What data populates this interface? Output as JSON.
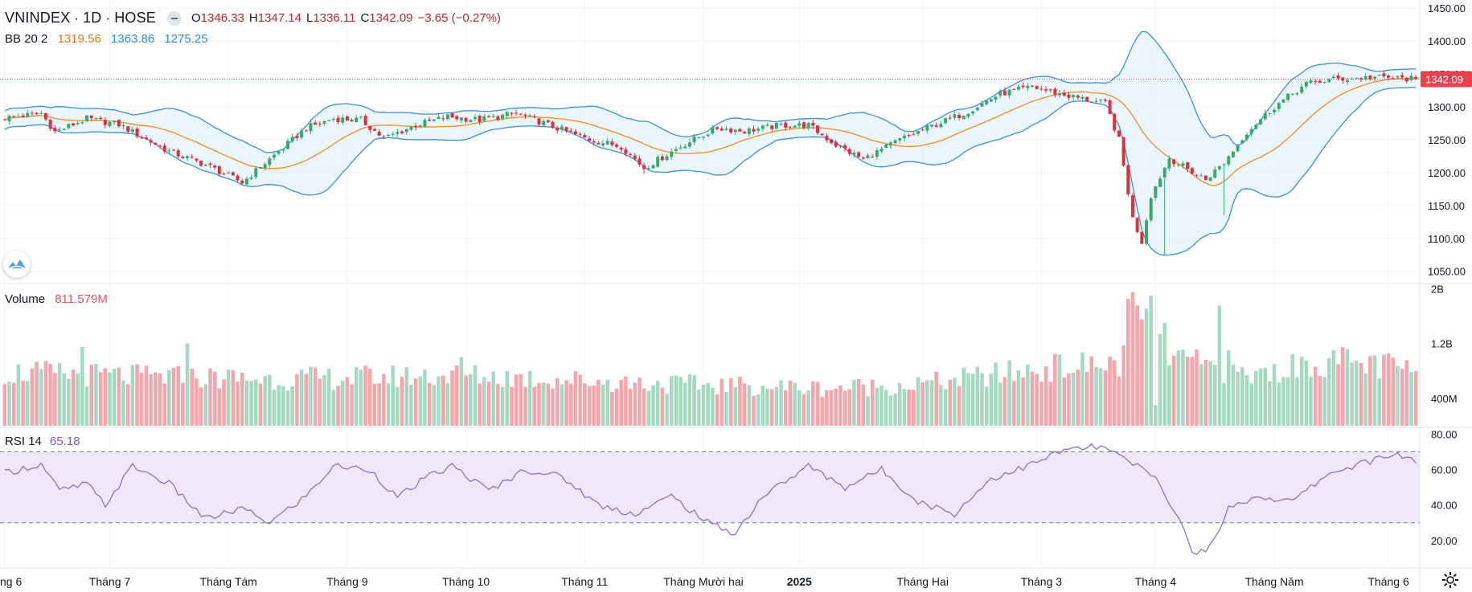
{
  "symbol": {
    "name": "VNINDEX",
    "interval": "1D",
    "exchange": "HOSE"
  },
  "ohlc": {
    "o_label": "O",
    "o": "1346.33",
    "h_label": "H",
    "h": "1347.14",
    "l_label": "L",
    "l": "1336.11",
    "c_label": "C",
    "c": "1342.09",
    "change": "−3.65 (−0.27%)"
  },
  "bb": {
    "name": "BB",
    "params": "20 2",
    "basis": "1319.56",
    "upper": "1363.86",
    "lower": "1275.25"
  },
  "volume": {
    "name": "Volume",
    "value": "811.579M"
  },
  "rsi": {
    "name": "RSI",
    "period": "14",
    "value": "65.18"
  },
  "last_price_label": "1342.09",
  "icons": {
    "logo": "tradingview-logo-icon",
    "hide": "minus-icon",
    "settings": "gear-icon"
  },
  "colors": {
    "up": "#26a69a",
    "down": "#ef5350",
    "upCandle": "#3aa76d",
    "downCandle": "#d9313e",
    "bbBasis": "#f08a24",
    "bbBand": "#3b8fd9",
    "bbFill": "#e3f1fb",
    "rsi": "#8e6fc8",
    "rsiFill": "#efe8fa",
    "volUp": "#a7d9c2",
    "volDown": "#f3a6ac",
    "priceTag": "#e8414d"
  },
  "chart_data": [
    {
      "type": "candlestick",
      "title": "VNINDEX · 1D · HOSE",
      "ylim": [
        1035,
        1460
      ],
      "y_ticks": [
        "1450.00",
        "1400.00",
        "1350.00",
        "1300.00",
        "1250.00",
        "1200.00",
        "1150.00",
        "1100.00",
        "1050.00"
      ],
      "x_labels": [
        "ng 6",
        "Tháng 7",
        "Tháng Tám",
        "Tháng 9",
        "Tháng 10",
        "Tháng 11",
        "Tháng Mười hai",
        "2025",
        "Tháng Hai",
        "Tháng 3",
        "Tháng 4",
        "Tháng Năm",
        "Tháng 6"
      ],
      "x_label_bar": [
        0,
        23,
        49,
        75,
        101,
        127,
        153,
        174,
        201,
        227,
        252,
        278,
        303
      ],
      "n_bars": 310,
      "keyframes": [
        [
          0,
          1283
        ],
        [
          8,
          1290
        ],
        [
          11,
          1262
        ],
        [
          18,
          1282
        ],
        [
          25,
          1273
        ],
        [
          36,
          1232
        ],
        [
          44,
          1212
        ],
        [
          52,
          1185
        ],
        [
          60,
          1232
        ],
        [
          66,
          1268
        ],
        [
          72,
          1282
        ],
        [
          78,
          1280
        ],
        [
          83,
          1252
        ],
        [
          90,
          1272
        ],
        [
          97,
          1285
        ],
        [
          104,
          1280
        ],
        [
          112,
          1290
        ],
        [
          120,
          1270
        ],
        [
          128,
          1250
        ],
        [
          135,
          1240
        ],
        [
          140,
          1207
        ],
        [
          148,
          1240
        ],
        [
          156,
          1268
        ],
        [
          162,
          1263
        ],
        [
          170,
          1272
        ],
        [
          176,
          1272
        ],
        [
          182,
          1242
        ],
        [
          188,
          1220
        ],
        [
          196,
          1250
        ],
        [
          202,
          1268
        ],
        [
          210,
          1290
        ],
        [
          218,
          1320
        ],
        [
          225,
          1330
        ],
        [
          232,
          1318
        ],
        [
          241,
          1305
        ],
        [
          244,
          1250
        ],
        [
          247,
          1130
        ],
        [
          249,
          1095
        ],
        [
          251,
          1165
        ],
        [
          255,
          1222
        ],
        [
          259,
          1205
        ],
        [
          263,
          1190
        ],
        [
          267,
          1215
        ],
        [
          272,
          1262
        ],
        [
          278,
          1300
        ],
        [
          285,
          1335
        ],
        [
          291,
          1342
        ],
        [
          300,
          1345
        ],
        [
          309,
          1342
        ]
      ],
      "wicks": [
        [
          254,
          1075
        ],
        [
          267,
          1135
        ],
        [
          52,
          1182
        ],
        [
          140,
          1198
        ]
      ],
      "last_close": 1342.09
    },
    {
      "type": "bar",
      "title": "Volume",
      "ylim": [
        0,
        2.05
      ],
      "y_ticks": [
        "2B",
        "1.2B",
        "400M"
      ],
      "value_unit": "B",
      "keyframes": [
        [
          0,
          0.78
        ],
        [
          30,
          0.72
        ],
        [
          60,
          0.68
        ],
        [
          100,
          0.74
        ],
        [
          140,
          0.62
        ],
        [
          180,
          0.55
        ],
        [
          200,
          0.6
        ],
        [
          230,
          0.85
        ],
        [
          244,
          0.9
        ],
        [
          247,
          1.7
        ],
        [
          251,
          1.5
        ],
        [
          255,
          1.05
        ],
        [
          260,
          0.9
        ],
        [
          266,
          0.85
        ],
        [
          272,
          0.72
        ],
        [
          290,
          0.95
        ],
        [
          309,
          0.81
        ]
      ],
      "spikes": [
        [
          246,
          1.85
        ],
        [
          247,
          1.95
        ],
        [
          249,
          1.55
        ],
        [
          251,
          1.9
        ],
        [
          252,
          0.3
        ],
        [
          254,
          1.5
        ],
        [
          266,
          1.75
        ],
        [
          268,
          1.1
        ],
        [
          40,
          1.2
        ],
        [
          17,
          1.15
        ],
        [
          100,
          1.0
        ]
      ]
    },
    {
      "type": "line",
      "title": "RSI",
      "ylim": [
        5,
        82
      ],
      "y_ticks": [
        "80.00",
        "60.00",
        "40.00",
        "20.00"
      ],
      "band": [
        30,
        70
      ],
      "keyframes": [
        [
          0,
          58
        ],
        [
          8,
          63
        ],
        [
          12,
          48
        ],
        [
          18,
          52
        ],
        [
          22,
          40
        ],
        [
          28,
          62
        ],
        [
          36,
          52
        ],
        [
          44,
          32
        ],
        [
          52,
          38
        ],
        [
          58,
          30
        ],
        [
          66,
          45
        ],
        [
          72,
          62
        ],
        [
          80,
          60
        ],
        [
          86,
          44
        ],
        [
          92,
          55
        ],
        [
          98,
          62
        ],
        [
          106,
          48
        ],
        [
          114,
          60
        ],
        [
          122,
          56
        ],
        [
          130,
          40
        ],
        [
          138,
          35
        ],
        [
          146,
          45
        ],
        [
          154,
          30
        ],
        [
          160,
          24
        ],
        [
          166,
          45
        ],
        [
          176,
          62
        ],
        [
          184,
          50
        ],
        [
          192,
          60
        ],
        [
          200,
          42
        ],
        [
          208,
          35
        ],
        [
          216,
          55
        ],
        [
          224,
          62
        ],
        [
          232,
          71
        ],
        [
          240,
          73
        ],
        [
          248,
          62
        ],
        [
          252,
          55
        ],
        [
          256,
          38
        ],
        [
          260,
          15
        ],
        [
          263,
          12
        ],
        [
          268,
          38
        ],
        [
          274,
          45
        ],
        [
          282,
          42
        ],
        [
          290,
          58
        ],
        [
          298,
          64
        ],
        [
          305,
          69
        ],
        [
          309,
          65
        ]
      ]
    }
  ]
}
